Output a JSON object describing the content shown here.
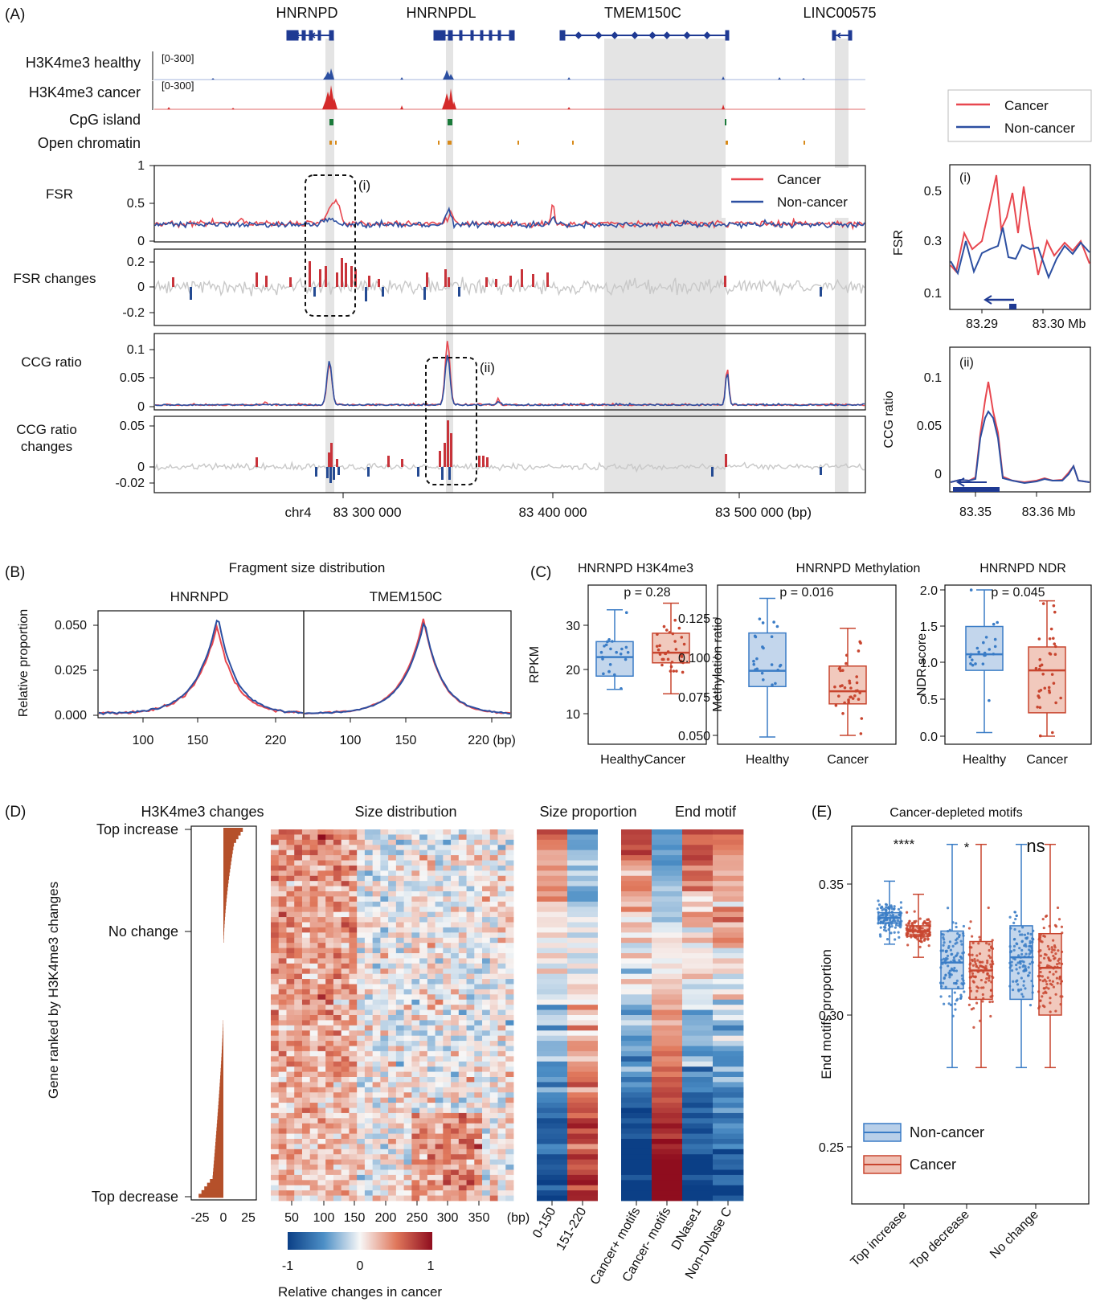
{
  "panels": {
    "A": "(A)",
    "B": "(B)",
    "C": "(C)",
    "D": "(D)",
    "E": "(E)"
  },
  "colors": {
    "cancer": "#e8474f",
    "noncancer": "#2c4fa1",
    "healthy_box": "#3a7cc6",
    "cancer_box": "#c8452f",
    "gene": "#1f3a93",
    "grey": "#c8c8c8",
    "bar": "#b5502a",
    "cpg": "#1a7a3a",
    "open": "#d88a1a",
    "shade": "#e4e4e4"
  },
  "panelA": {
    "genes": [
      "HNRNPD",
      "HNRNPDL",
      "TMEM150C",
      "LINC00575"
    ],
    "tracks": {
      "h3_healthy": "H3K4me3 healthy",
      "h3_cancer": "H3K4me3 cancer",
      "cpg": "CpG island",
      "open": "Open chromatin",
      "range": "[0-300]"
    },
    "rows": {
      "fsr": "FSR",
      "fsr_changes": "FSR changes",
      "ccg": "CCG ratio",
      "ccg_changes": "CCG ratio\nchanges"
    },
    "fsr_yticks": [
      "1",
      "0.5",
      "0"
    ],
    "fsr_changes_yticks": [
      "0.2",
      "0",
      "-0.2"
    ],
    "ccg_yticks": [
      "0.1",
      "0.05",
      "0"
    ],
    "ccg_changes_yticks": [
      "0.05",
      "0",
      "-0.02"
    ],
    "xticks": [
      "chr4",
      "83 300 000",
      "83 400 000",
      "83 500 000 (bp)"
    ],
    "callouts": [
      "(i)",
      "(ii)"
    ],
    "legend": [
      "Cancer",
      "Non-cancer"
    ]
  },
  "insets": {
    "legend": [
      "Cancer",
      "Non-cancer"
    ],
    "i": {
      "label": "(i)",
      "ylabel": "FSR",
      "yticks": [
        "0.5",
        "0.3",
        "0.1"
      ],
      "xticks": [
        "83.29",
        "83.30 Mb"
      ]
    },
    "ii": {
      "label": "(ii)",
      "ylabel": "CCG ratio",
      "yticks": [
        "0.1",
        "0.05",
        "0"
      ],
      "xticks": [
        "83.35",
        "83.36 Mb"
      ]
    }
  },
  "panelB": {
    "title": "Fragment size distribution",
    "subtitles": [
      "HNRNPD",
      "TMEM150C"
    ],
    "ylabel": "Relative proportion",
    "yticks": [
      "0.050",
      "0.025",
      "0.000"
    ],
    "xticks_left": [
      "100",
      "150",
      "220"
    ],
    "xticks_right": [
      "100",
      "150",
      "220 (bp)"
    ]
  },
  "panelC": {
    "titles": [
      "HNRNPD H3K4me3",
      "HNRNPD Methylation",
      "HNRNPD NDR"
    ],
    "ylabels": [
      "RPKM",
      "Methylation ratio",
      "NDR score"
    ],
    "pvalues": [
      "p = 0.28",
      "p = 0.016",
      "p = 0.045"
    ],
    "yticks": [
      [
        "30",
        "20",
        "10"
      ],
      [
        "0.125",
        "0.100",
        "0.075",
        "0.050"
      ],
      [
        "2.0",
        "1.5",
        "1.0",
        "0.5",
        "0.0"
      ]
    ],
    "xticks": [
      [
        "HealthyCancer"
      ],
      [
        "Healthy",
        "Cancer"
      ],
      [
        "Healthy",
        "Cancer"
      ]
    ]
  },
  "panelD": {
    "titles": [
      "H3K4me3 changes",
      "Size distribution",
      "Size proportion",
      "End motif"
    ],
    "ylabel": "Gene ranked by H3K4me3 changes",
    "rank_labels": [
      "Top increase",
      "No change",
      "Top decrease"
    ],
    "bar_xticks": [
      "-25",
      "0",
      "25"
    ],
    "size_xticks": [
      "50",
      "100",
      "150",
      "200",
      "250",
      "300",
      "350",
      "(bp)"
    ],
    "prop_cols": [
      "0-150",
      "151-220"
    ],
    "motif_cols": [
      "Cancer+ motifs",
      "Cancer- motifs",
      "DNase1",
      "Non-DNase C"
    ],
    "colorbar_label": "Relative changes in cancer",
    "colorbar_ticks": [
      "-1",
      "0",
      "1"
    ]
  },
  "panelE": {
    "title": "Cancer-depleted motifs",
    "ylabel": "End motifs proportion",
    "yticks": [
      "0.35",
      "0.30",
      "0.25"
    ],
    "categories": [
      "Top increase",
      "Top decrease",
      "No change"
    ],
    "significance": [
      "****",
      "*",
      "ns"
    ],
    "legend": [
      "Non-cancer",
      "Cancer"
    ]
  },
  "chart_data": [
    {
      "type": "line",
      "title": "FSR (HNRNPD region, chr4)",
      "x_range_bp": [
        83200000,
        83545000
      ],
      "ylim": [
        0,
        1
      ],
      "series": [
        {
          "name": "Cancer",
          "peaks": [
            [
              83295000,
              0.47
            ],
            [
              83350000,
              0.45
            ],
            [
              83395000,
              0.53
            ]
          ]
        },
        {
          "name": "Non-cancer",
          "peaks": [
            [
              83350000,
              0.42
            ]
          ]
        }
      ],
      "baseline": 0.25
    },
    {
      "type": "line",
      "title": "CCG ratio",
      "ylim": [
        0,
        0.12
      ],
      "series": [
        {
          "name": "Cancer",
          "peaks": [
            [
              83292000,
              0.075
            ],
            [
              83350000,
              0.115
            ],
            [
              83482000,
              0.07
            ]
          ]
        },
        {
          "name": "Non-cancer",
          "peaks": [
            [
              83292000,
              0.08
            ],
            [
              83350000,
              0.09
            ],
            [
              83482000,
              0.06
            ]
          ]
        }
      ]
    },
    {
      "type": "line",
      "title": "Fragment size distribution",
      "x_label": "bp",
      "x_range": [
        65,
        245
      ],
      "series": [
        {
          "name": "HNRNPD Cancer",
          "peak": [
            166,
            0.05
          ]
        },
        {
          "name": "HNRNPD Non-cancer",
          "peak": [
            166,
            0.056
          ]
        },
        {
          "name": "TMEM150C Cancer",
          "peak": [
            166,
            0.053
          ]
        },
        {
          "name": "TMEM150C Non-cancer",
          "peak": [
            166,
            0.052
          ]
        }
      ]
    },
    {
      "type": "box",
      "title": "HNRNPD H3K4me3",
      "ylabel": "RPKM",
      "boxes": [
        {
          "name": "Healthy",
          "q1": 18.5,
          "median": 22.8,
          "q3": 26.3,
          "whisker": [
            15.5,
            33.5
          ]
        },
        {
          "name": "Cancer",
          "q1": 21.5,
          "median": 23.8,
          "q3": 28.2,
          "whisker": [
            14.5,
            35
          ]
        }
      ],
      "p": "p = 0.28"
    },
    {
      "type": "box",
      "title": "HNRNPD Methylation",
      "ylabel": "Methylation ratio",
      "boxes": [
        {
          "name": "Healthy",
          "q1": 0.081,
          "median": 0.091,
          "q3": 0.115,
          "whisker": [
            0.049,
            0.137
          ]
        },
        {
          "name": "Cancer",
          "q1": 0.07,
          "median": 0.078,
          "q3": 0.094,
          "whisker": [
            0.05,
            0.118
          ]
        }
      ],
      "p": "p = 0.016"
    },
    {
      "type": "box",
      "title": "HNRNPD NDR",
      "ylabel": "NDR score",
      "boxes": [
        {
          "name": "Healthy",
          "q1": 0.9,
          "median": 1.12,
          "q3": 1.5,
          "whisker": [
            0.05,
            2.0
          ]
        },
        {
          "name": "Cancer",
          "q1": 0.32,
          "median": 0.9,
          "q3": 1.22,
          "whisker": [
            0.0,
            1.85
          ]
        }
      ],
      "p": "p = 0.045"
    },
    {
      "type": "box",
      "title": "Cancer-depleted motifs",
      "ylabel": "End motifs proportion",
      "groups": [
        {
          "name": "Top increase",
          "Non-cancer": {
            "q1": 0.335,
            "median": 0.337,
            "q3": 0.339
          },
          "Cancer": {
            "q1": 0.33,
            "median": 0.332,
            "q3": 0.334
          },
          "sig": "****"
        },
        {
          "name": "Top decrease",
          "Non-cancer": {
            "q1": 0.31,
            "median": 0.32,
            "q3": 0.332
          },
          "Cancer": {
            "q1": 0.306,
            "median": 0.317,
            "q3": 0.328
          },
          "sig": "*"
        },
        {
          "name": "No change",
          "Non-cancer": {
            "q1": 0.306,
            "median": 0.322,
            "q3": 0.334
          },
          "Cancer": {
            "q1": 0.3,
            "median": 0.318,
            "q3": 0.331
          },
          "sig": "ns"
        }
      ],
      "ylim": [
        0.24,
        0.38
      ]
    },
    {
      "type": "heatmap",
      "title": "Size distribution / Size proportion / End motif",
      "colorbar": {
        "label": "Relative changes in cancer",
        "range": [
          -1,
          1
        ]
      },
      "columns_size_proportion": [
        "0-150",
        "151-220"
      ],
      "columns_end_motif": [
        "Cancer+ motifs",
        "Cancer- motifs",
        "DNase1",
        "Non-DNase C"
      ]
    }
  ]
}
